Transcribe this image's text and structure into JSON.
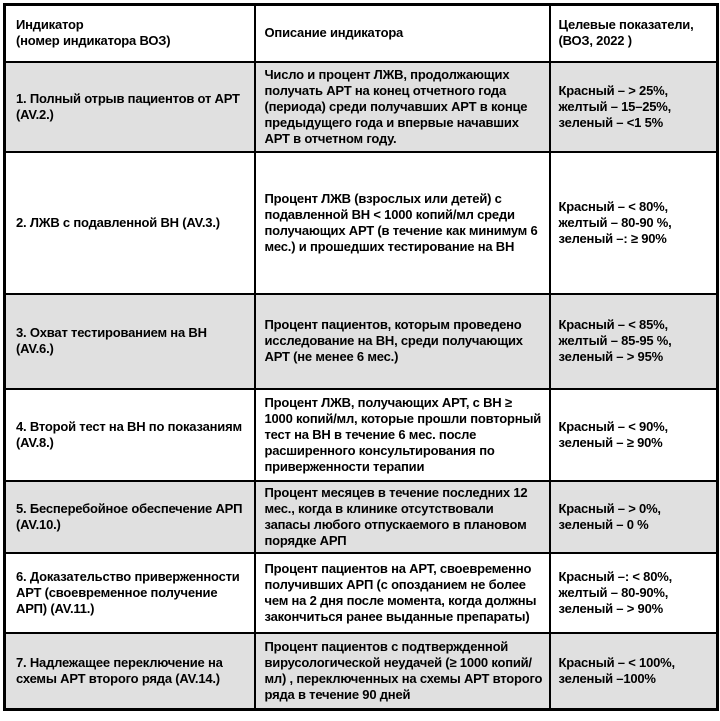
{
  "table": {
    "header": {
      "indicator": "Индикатор\n(номер индикатора ВОЗ)",
      "description": "Описание индикатора",
      "targets": "Целевые показатели,\n(ВОЗ, 2022 )"
    },
    "rows": [
      {
        "indicator": "1. Полный отрыв пациентов от АРТ (AV.2.)",
        "description": "Число и процент ЛЖВ, продолжающих получать АРТ на конец отчетного года (периода) среди получавших АРТ в конце предыдущего года и впервые начавших АРТ в отчетном году.",
        "targets": "Красный – > 25%,\nжелтый – 15–25%,\nзеленый – <1 5%"
      },
      {
        "indicator": "2. ЛЖВ с подавленной ВН (AV.3.)",
        "description": "Процент ЛЖВ (взрослых или детей) с подавленной ВН < 1000 копий/мл  среди получающих АРТ (в течение как минимум 6 мес.) и прошедших тестирование на ВН",
        "targets": "Красный – < 80%,\nжелтый – 80-90 %,\nзеленый –: ≥ 90%"
      },
      {
        "indicator": "3. Охват тестированием на ВН (AV.6.)",
        "description": "Процент пациентов, которым проведено исследование на ВН, среди получающих АРТ (не менее 6 мес.)",
        "targets": "Красный – < 85%,\nжелтый – 85-95 %,\nзеленый – > 95%"
      },
      {
        "indicator": "4. Второй тест на ВН  по показаниям (AV.8.)",
        "description": "Процент ЛЖВ, получающих АРТ, с ВН ≥ 1000 копий/мл, которые прошли повторный тест на ВН в течение 6 мес. после расширенного консультирования по приверженности терапии",
        "targets": "Красный – < 90%,\nзеленый – ≥ 90%"
      },
      {
        "indicator": "5. Бесперебойное обеспечение АРП (AV.10.)",
        "description": "Процент месяцев в течение последних 12 мес., когда в клинике отсутствовали запасы любого отпускаемого в плановом порядке АРП",
        "targets": "Красный – > 0%,\nзеленый – 0 %"
      },
      {
        "indicator": "6. Доказательство приверженности АРТ (своевременное получение АРП) (AV.11.)",
        "description": "Процент пациентов на АРТ, своевременно получивших АРП  (с опозданием не более чем на 2 дня после момента, когда должны закончиться ранее выданные препараты)",
        "targets": "Красный –: < 80%,\nжелтый – 80-90%,\nзеленый – > 90%"
      },
      {
        "indicator": "7. Надлежащее переключение на схемы АРТ второго ряда (AV.14.)",
        "description": "Процент пациентов с подтвержденной вирусологической неудачей (≥ 1000 копий/мл) , переключенных на схемы АРТ второго ряда в течение 90 дней",
        "targets": "Красный – < 100%,\nзеленый –100%"
      }
    ],
    "colors": {
      "row_shade": "#e0e0e0",
      "border": "#000000",
      "text": "#000000"
    }
  }
}
